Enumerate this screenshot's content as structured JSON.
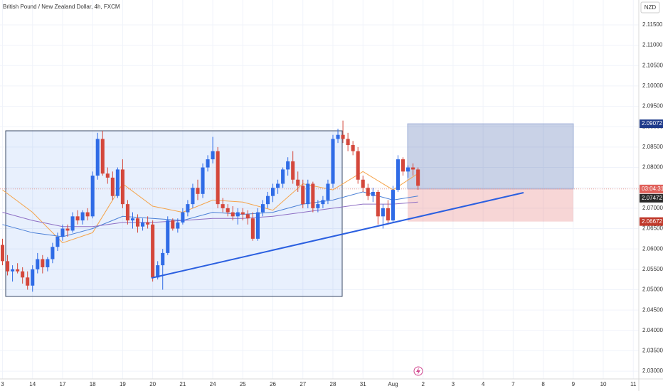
{
  "chart_data": {
    "type": "candlestick",
    "title": "British Pound / New Zealand Dollar, 4h, FXCM",
    "currency": "NZD",
    "countdown": "03:04:31",
    "colors": {
      "up": "#2f6be6",
      "down": "#d4473b"
    },
    "grid": true,
    "ylim": [
      2.0281,
      2.1211
    ],
    "xlim": [
      -0.5,
      127.1
    ],
    "yticks": [
      {
        "value": 2.03,
        "label": "2.03000"
      },
      {
        "value": 2.035,
        "label": "2.03500"
      },
      {
        "value": 2.04,
        "label": "2.04000"
      },
      {
        "value": 2.045,
        "label": "2.04500"
      },
      {
        "value": 2.05,
        "label": "2.05000"
      },
      {
        "value": 2.055,
        "label": "2.05500"
      },
      {
        "value": 2.06,
        "label": "2.06000"
      },
      {
        "value": 2.065,
        "label": "2.06500"
      },
      {
        "value": 2.07,
        "label": "2.07000"
      },
      {
        "value": 2.075,
        "label": "2.07500"
      },
      {
        "value": 2.08,
        "label": "2.08000"
      },
      {
        "value": 2.085,
        "label": "2.08500"
      },
      {
        "value": 2.09,
        "label": "2.09000"
      },
      {
        "value": 2.095,
        "label": "2.09500"
      },
      {
        "value": 2.1,
        "label": "2.10000"
      },
      {
        "value": 2.105,
        "label": "2.10500"
      },
      {
        "value": 2.11,
        "label": "2.11000"
      },
      {
        "value": 2.115,
        "label": "2.11500"
      }
    ],
    "xticks": [
      {
        "value": 0,
        "label": "3"
      },
      {
        "value": 6,
        "label": "14"
      },
      {
        "value": 12,
        "label": "17"
      },
      {
        "value": 18,
        "label": "18"
      },
      {
        "value": 24,
        "label": "19"
      },
      {
        "value": 30,
        "label": "20"
      },
      {
        "value": 36,
        "label": "21"
      },
      {
        "value": 42,
        "label": "24"
      },
      {
        "value": 48,
        "label": "25"
      },
      {
        "value": 54,
        "label": "26"
      },
      {
        "value": 60,
        "label": "27"
      },
      {
        "value": 66,
        "label": "28"
      },
      {
        "value": 72,
        "label": "31"
      },
      {
        "value": 78,
        "label": "Aug"
      },
      {
        "value": 84,
        "label": "2"
      },
      {
        "value": 90,
        "label": "3"
      },
      {
        "value": 96,
        "label": "4"
      },
      {
        "value": 102,
        "label": "7"
      },
      {
        "value": 108,
        "label": "8"
      },
      {
        "value": 114,
        "label": "9"
      },
      {
        "value": 120,
        "label": "10"
      },
      {
        "value": 126,
        "label": "11"
      }
    ],
    "ohlc": [
      [
        2.061,
        2.0625,
        2.056,
        2.057
      ],
      [
        2.057,
        2.0585,
        2.0535,
        2.0545
      ],
      [
        2.0545,
        2.056,
        2.052,
        2.055
      ],
      [
        2.055,
        2.0565,
        2.054,
        2.0545
      ],
      [
        2.0545,
        2.0555,
        2.0515,
        2.053
      ],
      [
        2.053,
        2.0545,
        2.05,
        2.051
      ],
      [
        2.051,
        2.056,
        2.0495,
        2.055
      ],
      [
        2.055,
        2.059,
        2.054,
        2.0575
      ],
      [
        2.0575,
        2.0585,
        2.054,
        2.0555
      ],
      [
        2.0555,
        2.058,
        2.0545,
        2.0575
      ],
      [
        2.0575,
        2.0615,
        2.0565,
        2.0605
      ],
      [
        2.0605,
        2.064,
        2.0595,
        2.063
      ],
      [
        2.063,
        2.066,
        2.062,
        2.065
      ],
      [
        2.065,
        2.066,
        2.063,
        2.0645
      ],
      [
        2.0645,
        2.069,
        2.064,
        2.068
      ],
      [
        2.068,
        2.0695,
        2.066,
        2.067
      ],
      [
        2.067,
        2.0695,
        2.066,
        2.069
      ],
      [
        2.069,
        2.07,
        2.067,
        2.068
      ],
      [
        2.068,
        2.079,
        2.0675,
        2.078
      ],
      [
        2.078,
        2.0885,
        2.077,
        2.087
      ],
      [
        2.087,
        2.089,
        2.078,
        2.0785
      ],
      [
        2.0785,
        2.08,
        2.076,
        2.0775
      ],
      [
        2.0775,
        2.079,
        2.072,
        2.073
      ],
      [
        2.073,
        2.08,
        2.0725,
        2.0795
      ],
      [
        2.0795,
        2.082,
        2.07,
        2.071
      ],
      [
        2.071,
        2.072,
        2.066,
        2.067
      ],
      [
        2.067,
        2.069,
        2.065,
        2.0675
      ],
      [
        2.0675,
        2.0685,
        2.064,
        2.0655
      ],
      [
        2.0655,
        2.0675,
        2.0645,
        2.0665
      ],
      [
        2.0665,
        2.068,
        2.065,
        2.066
      ],
      [
        2.066,
        2.067,
        2.052,
        2.053
      ],
      [
        2.053,
        2.057,
        2.0525,
        2.056
      ],
      [
        2.056,
        2.06,
        2.05,
        2.059
      ],
      [
        2.059,
        2.068,
        2.0585,
        2.067
      ],
      [
        2.067,
        2.0675,
        2.0645,
        2.065
      ],
      [
        2.065,
        2.0675,
        2.064,
        2.0665
      ],
      [
        2.0665,
        2.07,
        2.066,
        2.069
      ],
      [
        2.069,
        2.072,
        2.068,
        2.071
      ],
      [
        2.071,
        2.076,
        2.07,
        2.075
      ],
      [
        2.075,
        2.077,
        2.072,
        2.0735
      ],
      [
        2.0735,
        2.081,
        2.0725,
        2.08
      ],
      [
        2.08,
        2.083,
        2.079,
        2.082
      ],
      [
        2.082,
        2.0875,
        2.081,
        2.084
      ],
      [
        2.084,
        2.085,
        2.07,
        2.071
      ],
      [
        2.071,
        2.0725,
        2.069,
        2.07
      ],
      [
        2.07,
        2.071,
        2.068,
        2.069
      ],
      [
        2.069,
        2.0705,
        2.067,
        2.068
      ],
      [
        2.068,
        2.07,
        2.066,
        2.069
      ],
      [
        2.069,
        2.07,
        2.067,
        2.0685
      ],
      [
        2.0685,
        2.0695,
        2.066,
        2.0675
      ],
      [
        2.0675,
        2.069,
        2.062,
        2.0625
      ],
      [
        2.0625,
        2.07,
        2.062,
        2.069
      ],
      [
        2.069,
        2.072,
        2.068,
        2.071
      ],
      [
        2.071,
        2.074,
        2.07,
        2.073
      ],
      [
        2.073,
        2.076,
        2.0715,
        2.075
      ],
      [
        2.075,
        2.077,
        2.0735,
        2.076
      ],
      [
        2.076,
        2.08,
        2.075,
        2.0795
      ],
      [
        2.0795,
        2.0825,
        2.078,
        2.0815
      ],
      [
        2.0815,
        2.084,
        2.076,
        2.077
      ],
      [
        2.077,
        2.079,
        2.074,
        2.0755
      ],
      [
        2.0755,
        2.077,
        2.07,
        2.071
      ],
      [
        2.071,
        2.077,
        2.07,
        2.076
      ],
      [
        2.076,
        2.0765,
        2.069,
        2.07
      ],
      [
        2.07,
        2.072,
        2.069,
        2.071
      ],
      [
        2.071,
        2.073,
        2.07,
        2.072
      ],
      [
        2.072,
        2.077,
        2.071,
        2.076
      ],
      [
        2.076,
        2.088,
        2.075,
        2.087
      ],
      [
        2.087,
        2.0895,
        2.086,
        2.088
      ],
      [
        2.088,
        2.0915,
        2.086,
        2.087
      ],
      [
        2.087,
        2.0885,
        2.084,
        2.0855
      ],
      [
        2.0855,
        2.0865,
        2.083,
        2.084
      ],
      [
        2.084,
        2.085,
        2.076,
        2.077
      ],
      [
        2.077,
        2.078,
        2.074,
        2.075
      ],
      [
        2.075,
        2.076,
        2.072,
        2.073
      ],
      [
        2.073,
        2.075,
        2.0715,
        2.074
      ],
      [
        2.074,
        2.0745,
        2.066,
        2.068
      ],
      [
        2.068,
        2.071,
        2.065,
        2.07
      ],
      [
        2.07,
        2.072,
        2.066,
        2.067
      ],
      [
        2.067,
        2.0755,
        2.0665,
        2.0745
      ],
      [
        2.0745,
        2.083,
        2.074,
        2.082
      ],
      [
        2.082,
        2.0825,
        2.078,
        2.079
      ],
      [
        2.079,
        2.0805,
        2.0775,
        2.08
      ],
      [
        2.08,
        2.081,
        2.078,
        2.0795
      ],
      [
        2.0795,
        2.08,
        2.0745,
        2.0755
      ]
    ],
    "lines": [
      {
        "color": "#f5a34a",
        "x": [
          0,
          6,
          12,
          18,
          24,
          30,
          36,
          42,
          48,
          54,
          60,
          66,
          72,
          78,
          83
        ],
        "values": [
          2.0745,
          2.069,
          2.0615,
          2.064,
          2.076,
          2.0705,
          2.069,
          2.072,
          2.0715,
          2.0695,
          2.076,
          2.0745,
          2.079,
          2.0745,
          2.0785
        ]
      },
      {
        "color": "#4a7fd6",
        "x": [
          0,
          6,
          12,
          18,
          24,
          30,
          36,
          42,
          48,
          54,
          60,
          66,
          72,
          78,
          83
        ],
        "values": [
          2.066,
          2.064,
          2.063,
          2.065,
          2.068,
          2.0675,
          2.067,
          2.069,
          2.0685,
          2.069,
          2.071,
          2.072,
          2.074,
          2.072,
          2.073
        ]
      },
      {
        "color": "#8e6fc4",
        "x": [
          0,
          6,
          12,
          18,
          24,
          30,
          36,
          42,
          48,
          54,
          60,
          66,
          72,
          78,
          83
        ],
        "values": [
          2.069,
          2.067,
          2.0655,
          2.0655,
          2.0665,
          2.0665,
          2.067,
          2.0675,
          2.0675,
          2.068,
          2.069,
          2.07,
          2.071,
          2.071,
          2.0715
        ]
      }
    ],
    "position": {
      "target": 2.09072,
      "entry": 2.07472,
      "stop": 2.06672
    }
  }
}
